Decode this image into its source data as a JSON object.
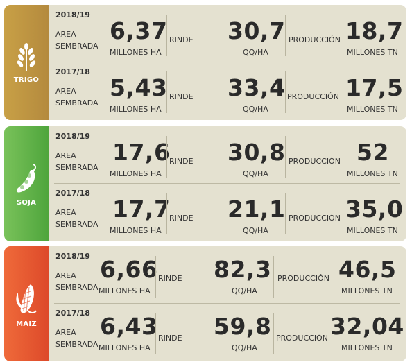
{
  "crops": [
    {
      "name": "TRIGO",
      "icon": "wheat-icon",
      "rows": [
        {
          "year": "2018/19",
          "area_label": [
            "AREA",
            "SEMBRADA"
          ],
          "area_value": "6,37",
          "area_unit": "MILLONES HA",
          "rinde_label": "RINDE",
          "rinde_value": "30,7",
          "rinde_unit": "QQ/HA",
          "prod_label": "PRODUCCIÓN",
          "prod_value": "18,7",
          "prod_unit": "MILLONES TN"
        },
        {
          "year": "2017/18",
          "area_label": [
            "AREA",
            "SEMBRADA"
          ],
          "area_value": "5,43",
          "area_unit": "MILLONES HA",
          "rinde_label": "RINDE",
          "rinde_value": "33,4",
          "rinde_unit": "QQ/HA",
          "prod_label": "PRODUCCIÓN",
          "prod_value": "17,5",
          "prod_unit": "MILLONES TN"
        }
      ]
    },
    {
      "name": "SOJA",
      "icon": "soybean-pod-icon",
      "rows": [
        {
          "year": "2018/19",
          "area_label": [
            "AREA",
            "SEMBRADA"
          ],
          "area_value": "17,6",
          "area_unit": "MILLONES HA",
          "rinde_label": "RINDE",
          "rinde_value": "30,8",
          "rinde_unit": "QQ/HA",
          "prod_label": "PRODUCCIÓN",
          "prod_value": "52",
          "prod_unit": "MILLONES TN"
        },
        {
          "year": "2017/18",
          "area_label": [
            "AREA",
            "SEMBRADA"
          ],
          "area_value": "17,7",
          "area_unit": "MILLONES HA",
          "rinde_label": "RINDE",
          "rinde_value": "21,1",
          "rinde_unit": "QQ/HA",
          "prod_label": "PRODUCCIÓN",
          "prod_value": "35,0",
          "prod_unit": "MILLONES TN"
        }
      ]
    },
    {
      "name": "MAIZ",
      "icon": "corn-icon",
      "rows": [
        {
          "year": "2018/19",
          "area_label": [
            "AREA",
            "SEMBRADA"
          ],
          "area_value": "6,66",
          "area_unit": "MILLONES HA",
          "rinde_label": "RINDE",
          "rinde_value": "82,3",
          "rinde_unit": "QQ/HA",
          "prod_label": "PRODUCCIÓN",
          "prod_value": "46,5",
          "prod_unit": "MILLONES TN"
        },
        {
          "year": "2017/18",
          "area_label": [
            "AREA",
            "SEMBRADA"
          ],
          "area_value": "6,43",
          "area_unit": "MILLONES HA",
          "rinde_label": "RINDE",
          "rinde_value": "59,8",
          "rinde_unit": "QQ/HA",
          "prod_label": "PRODUCCIÓN",
          "prod_value": "32,04",
          "prod_unit": "MILLONES TN"
        }
      ]
    }
  ],
  "colors": {
    "card_bg": "#e4e1d0",
    "trigo": "#b8903f",
    "soja": "#5cb044",
    "maiz": "#e4552f"
  }
}
